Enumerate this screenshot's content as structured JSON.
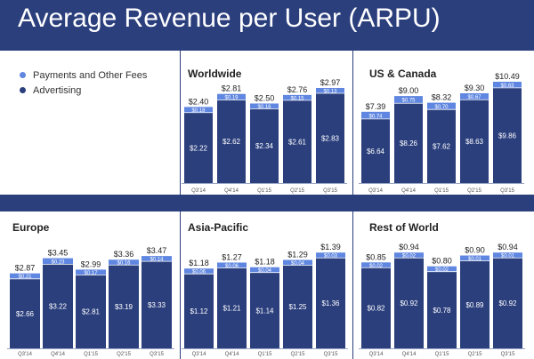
{
  "title": "Average Revenue per User (ARPU)",
  "colors": {
    "background": "#2b3f7d",
    "advertising": "#2b3f7d",
    "payments": "#5f86e0",
    "panel": "#ffffff"
  },
  "legend": {
    "items": [
      {
        "label": "Payments and Other Fees",
        "color": "#5f86e0"
      },
      {
        "label": "Advertising",
        "color": "#2b3f7d"
      }
    ]
  },
  "chart_data": [
    {
      "type": "bar",
      "stacked": true,
      "title": "Worldwide",
      "categories": [
        "Q3'14",
        "Q4'14",
        "Q1'15",
        "Q2'15",
        "Q3'15"
      ],
      "series": [
        {
          "name": "Advertising",
          "values": [
            2.22,
            2.62,
            2.34,
            2.61,
            2.83
          ],
          "labels": [
            "$2.22",
            "$2.62",
            "$2.34",
            "$2.61",
            "$2.83"
          ]
        },
        {
          "name": "Payments and Other Fees",
          "values": [
            0.18,
            0.19,
            0.16,
            0.15,
            0.13
          ],
          "labels": [
            "$0.18",
            "$0.19",
            "$0.16",
            "$0.15",
            "$0.13"
          ]
        }
      ],
      "totals": [
        "$2.40",
        "$2.81",
        "$2.50",
        "$2.76",
        "$2.97"
      ],
      "total_values": [
        2.4,
        2.81,
        2.5,
        2.76,
        2.97
      ]
    },
    {
      "type": "bar",
      "stacked": true,
      "title": "US & Canada",
      "categories": [
        "Q3'14",
        "Q4'14",
        "Q1'15",
        "Q2'15",
        "Q3'15"
      ],
      "series": [
        {
          "name": "Advertising",
          "values": [
            6.64,
            8.26,
            7.62,
            8.63,
            9.86
          ],
          "labels": [
            "$6.64",
            "$8.26",
            "$7.62",
            "$8.63",
            "$9.86"
          ]
        },
        {
          "name": "Payments and Other Fees",
          "values": [
            0.74,
            0.75,
            0.7,
            0.67,
            0.63
          ],
          "labels": [
            "$0.74",
            "$0.75",
            "$0.70",
            "$0.67",
            "$0.63"
          ]
        }
      ],
      "totals": [
        "$7.39",
        "$9.00",
        "$8.32",
        "$9.30",
        "$10.49"
      ],
      "total_values": [
        7.39,
        9.0,
        8.32,
        9.3,
        10.49
      ]
    },
    {
      "type": "bar",
      "stacked": true,
      "title": "Europe",
      "categories": [
        "Q3'14",
        "Q4'14",
        "Q1'15",
        "Q2'15",
        "Q3'15"
      ],
      "series": [
        {
          "name": "Advertising",
          "values": [
            2.66,
            3.22,
            2.81,
            3.19,
            3.33
          ],
          "labels": [
            "$2.66",
            "$3.22",
            "$2.81",
            "$3.19",
            "$3.33"
          ]
        },
        {
          "name": "Payments and Other Fees",
          "values": [
            0.21,
            0.23,
            0.17,
            0.16,
            0.14
          ],
          "labels": [
            "$0.21",
            "$0.23",
            "$0.17",
            "$0.16",
            "$0.14"
          ]
        }
      ],
      "totals": [
        "$2.87",
        "$3.45",
        "$2.99",
        "$3.36",
        "$3.47"
      ],
      "total_values": [
        2.87,
        3.45,
        2.99,
        3.36,
        3.47
      ]
    },
    {
      "type": "bar",
      "stacked": true,
      "title": "Asia-Pacific",
      "categories": [
        "Q3'14",
        "Q4'14",
        "Q1'15",
        "Q2'15",
        "Q3'15"
      ],
      "series": [
        {
          "name": "Advertising",
          "values": [
            1.12,
            1.21,
            1.14,
            1.25,
            1.36
          ],
          "labels": [
            "$1.12",
            "$1.21",
            "$1.14",
            "$1.25",
            "$1.36"
          ]
        },
        {
          "name": "Payments and Other Fees",
          "values": [
            0.06,
            0.06,
            0.04,
            0.04,
            0.03
          ],
          "labels": [
            "$0.06",
            "$0.06",
            "$0.04",
            "$0.04",
            "$0.03"
          ]
        }
      ],
      "totals": [
        "$1.18",
        "$1.27",
        "$1.18",
        "$1.29",
        "$1.39"
      ],
      "total_values": [
        1.18,
        1.27,
        1.18,
        1.29,
        1.39
      ]
    },
    {
      "type": "bar",
      "stacked": true,
      "title": "Rest of World",
      "categories": [
        "Q3'14",
        "Q4'14",
        "Q1'15",
        "Q2'15",
        "Q3'15"
      ],
      "series": [
        {
          "name": "Advertising",
          "values": [
            0.82,
            0.92,
            0.78,
            0.89,
            0.92
          ],
          "labels": [
            "$0.82",
            "$0.92",
            "$0.78",
            "$0.89",
            "$0.92"
          ]
        },
        {
          "name": "Payments and Other Fees",
          "values": [
            0.02,
            0.02,
            0.02,
            0.01,
            0.01
          ],
          "labels": [
            "$0.02",
            "$0.02",
            "$0.02",
            "$0.01",
            "$0.01"
          ]
        }
      ],
      "totals": [
        "$0.85",
        "$0.94",
        "$0.80",
        "$0.90",
        "$0.94"
      ],
      "total_values": [
        0.85,
        0.94,
        0.8,
        0.9,
        0.94
      ]
    }
  ]
}
